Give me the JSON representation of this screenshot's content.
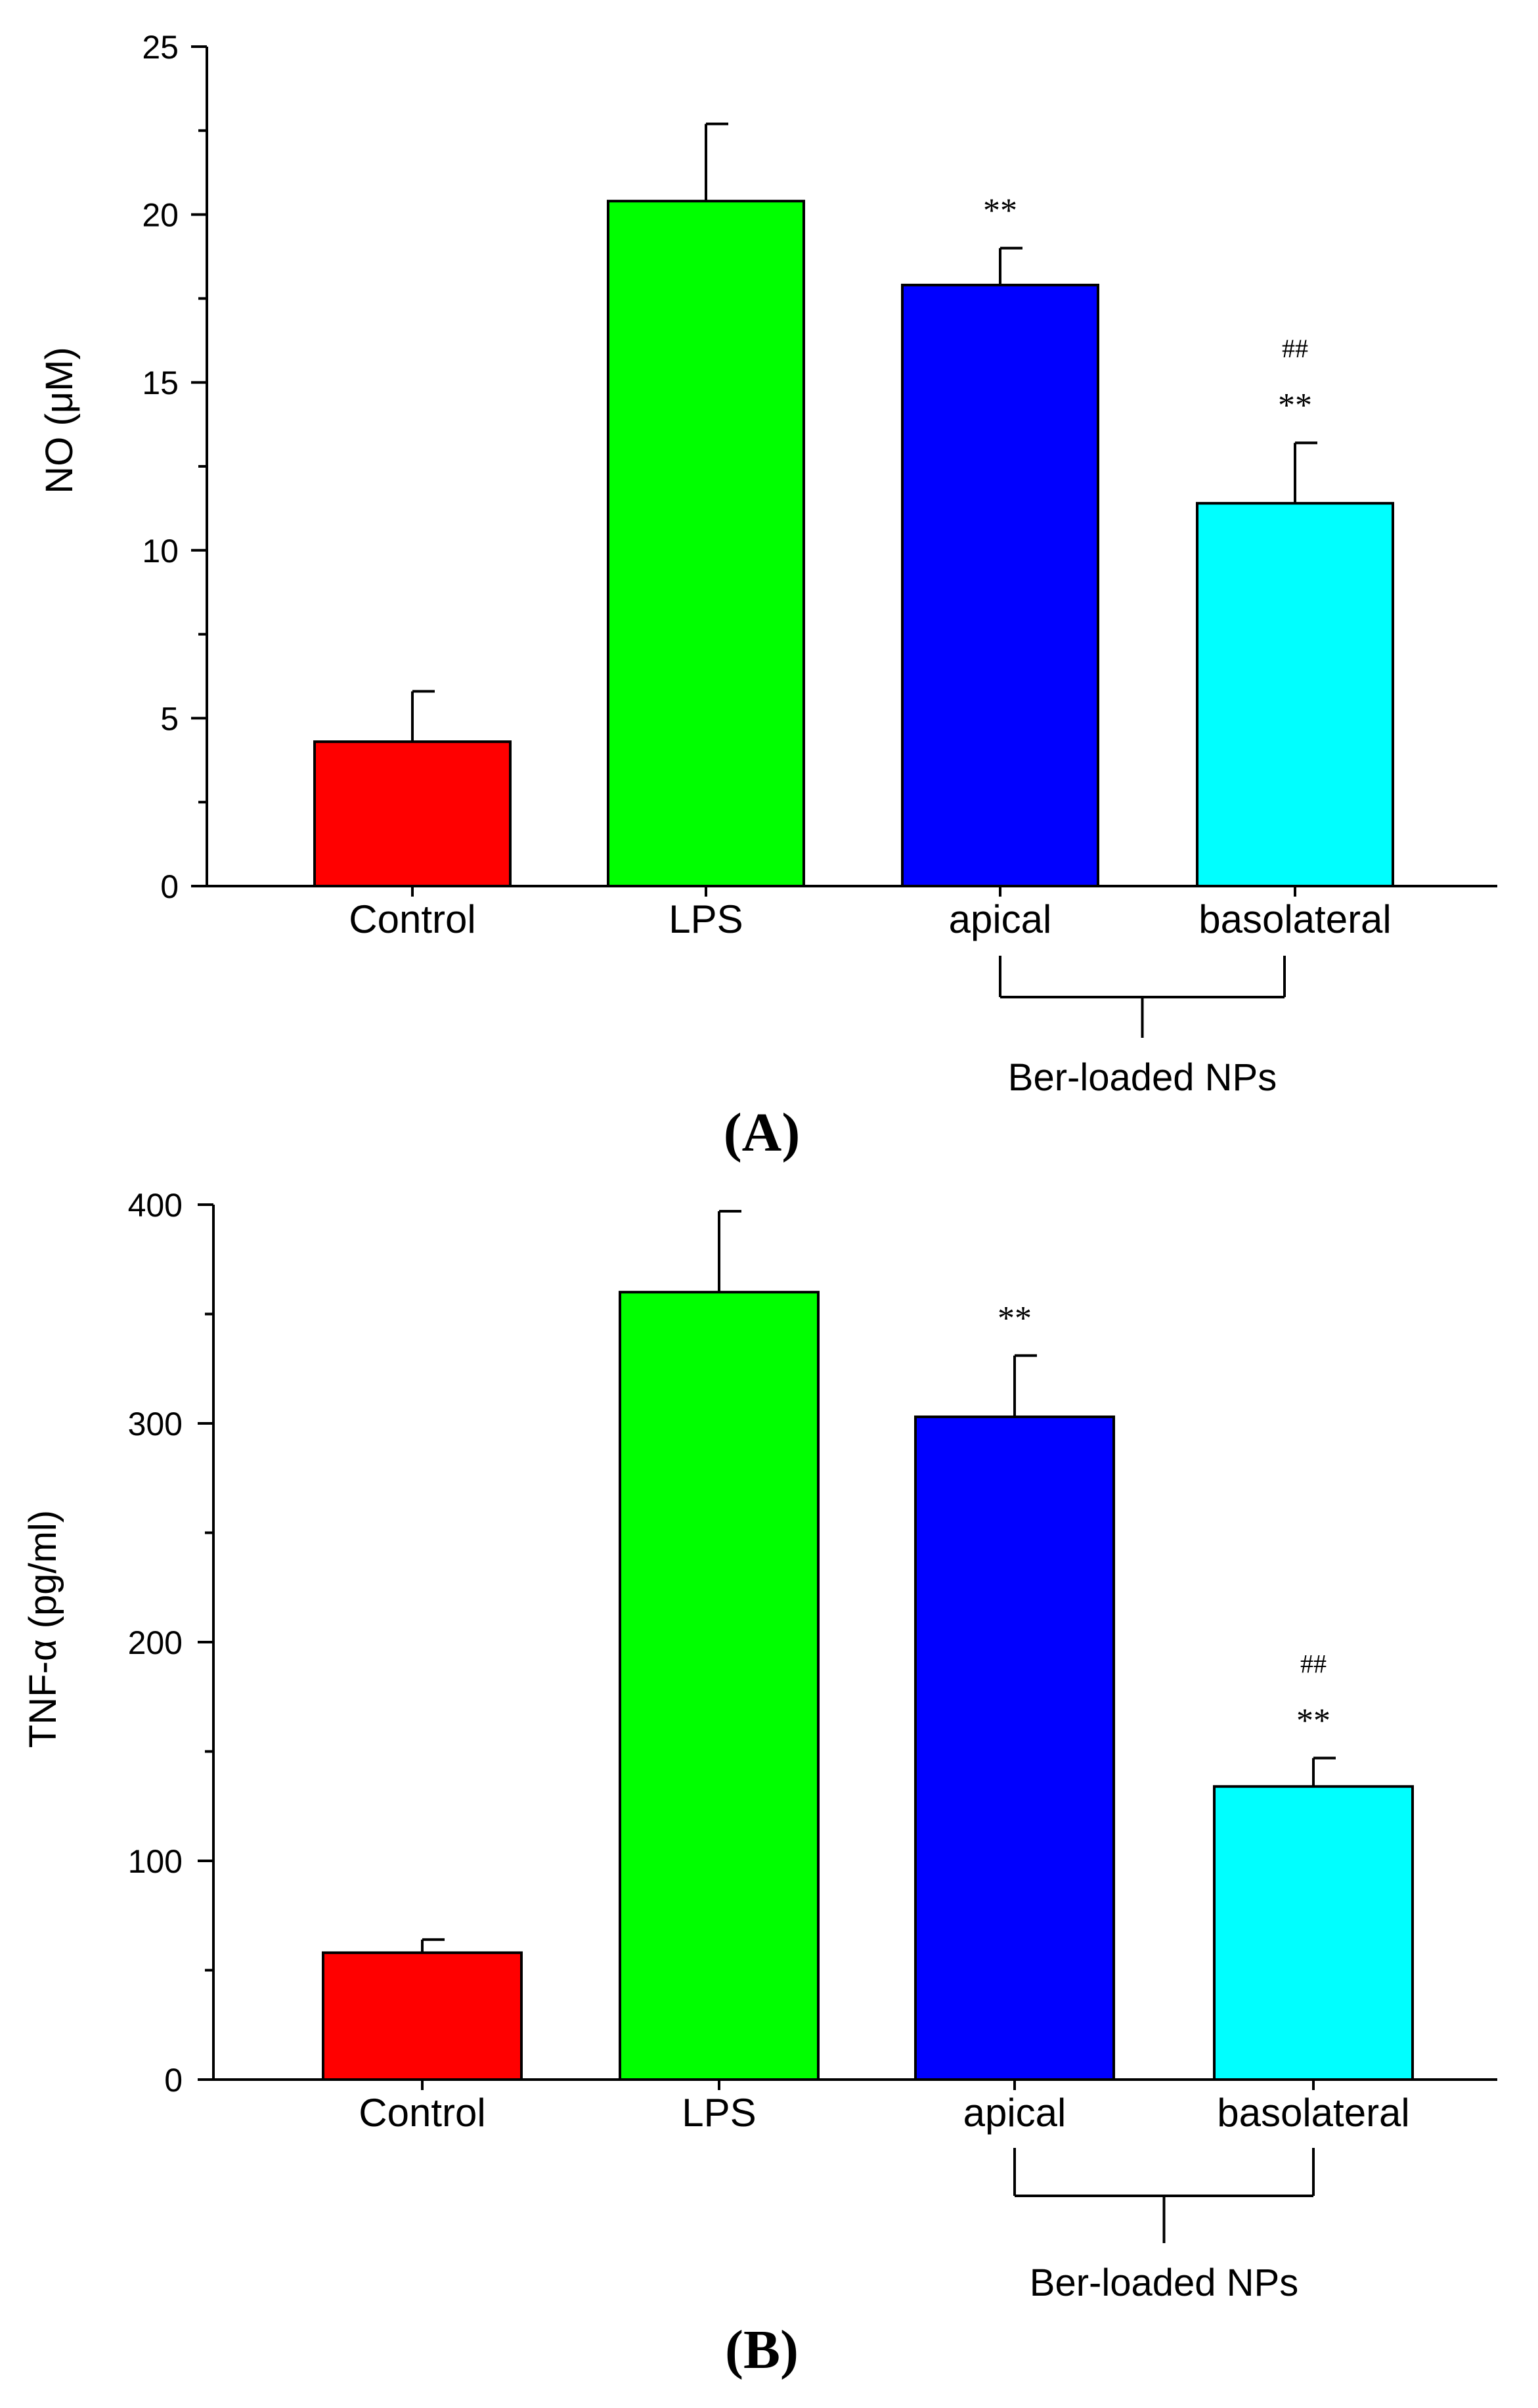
{
  "colors": {
    "axis": "#000000",
    "bars": [
      "#ff0000",
      "#00ff00",
      "#0000ff",
      "#00ffff"
    ]
  },
  "chart_data": [
    {
      "type": "bar",
      "panel_label": "(A)",
      "categories": [
        "Control",
        "LPS",
        "apical",
        "basolateral"
      ],
      "values": [
        4.3,
        20.4,
        17.9,
        11.4
      ],
      "errors": [
        1.5,
        2.3,
        1.1,
        1.8
      ],
      "annotations": [
        "",
        "",
        "**",
        "**"
      ],
      "annotations_top": [
        "",
        "",
        "",
        "##"
      ],
      "group_bracket": {
        "label": "Ber-loaded NPs",
        "from": 2,
        "to": 3
      },
      "title": "",
      "xlabel": "",
      "ylabel": "NO (μM)",
      "ylim": [
        0,
        25
      ],
      "yticks": [
        0,
        5,
        10,
        15,
        20,
        25
      ]
    },
    {
      "type": "bar",
      "panel_label": "(B)",
      "categories": [
        "Control",
        "LPS",
        "apical",
        "basolateral"
      ],
      "values": [
        58,
        360,
        303,
        134
      ],
      "errors": [
        6,
        37,
        28,
        13
      ],
      "annotations": [
        "",
        "",
        "**",
        "**"
      ],
      "annotations_top": [
        "",
        "",
        "",
        "##"
      ],
      "group_bracket": {
        "label": "Ber-loaded NPs",
        "from": 2,
        "to": 3
      },
      "title": "",
      "xlabel": "",
      "ylabel": "TNF-α (pg/ml)",
      "ylim": [
        0,
        400
      ],
      "yticks": [
        0,
        100,
        200,
        300,
        400
      ]
    }
  ]
}
